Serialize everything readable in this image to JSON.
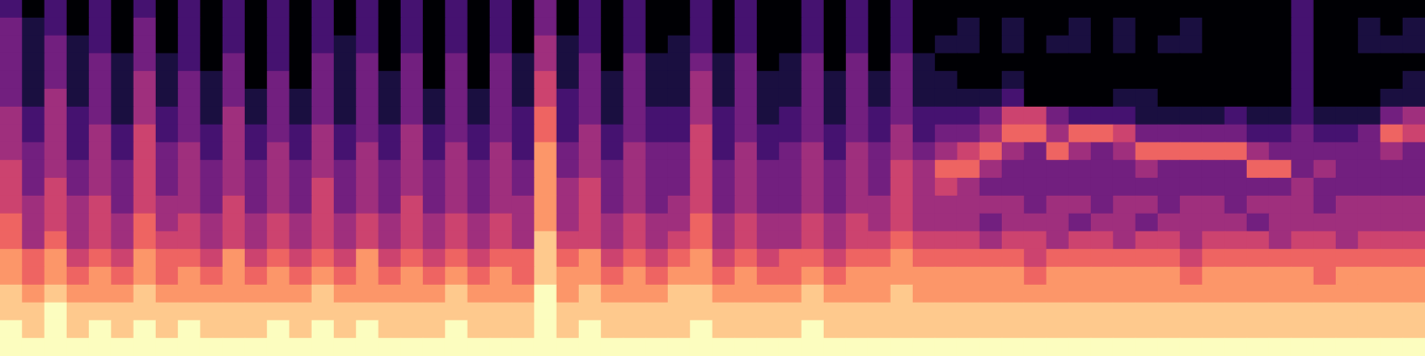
{
  "chart_data": {
    "type": "heatmap",
    "tick_labels": false,
    "color_range": [
      0,
      9
    ],
    "cells": [
      [
        2,
        0,
        2,
        0,
        2,
        0,
        2,
        0,
        2,
        0,
        2,
        0,
        2,
        0,
        2,
        0,
        2,
        0,
        2,
        0,
        2,
        0,
        2,
        0,
        3,
        0,
        2,
        0,
        2,
        0,
        0,
        2,
        0,
        2,
        0,
        0,
        2,
        0,
        2,
        0,
        2,
        0,
        0,
        0,
        0,
        0,
        0,
        0,
        0,
        0,
        0,
        0,
        0,
        0,
        0,
        0,
        0,
        0,
        2,
        0,
        0,
        0,
        0,
        0
      ],
      [
        3,
        1,
        2,
        0,
        2,
        0,
        3,
        0,
        2,
        0,
        2,
        0,
        2,
        0,
        2,
        0,
        2,
        0,
        2,
        0,
        2,
        0,
        2,
        0,
        3,
        0,
        2,
        0,
        2,
        0,
        0,
        2,
        0,
        2,
        0,
        0,
        2,
        0,
        2,
        0,
        2,
        0,
        0,
        1,
        0,
        1,
        0,
        0,
        1,
        0,
        1,
        0,
        0,
        1,
        0,
        0,
        0,
        0,
        2,
        0,
        0,
        1,
        0,
        1
      ],
      [
        3,
        1,
        3,
        1,
        2,
        0,
        3,
        0,
        2,
        0,
        2,
        0,
        2,
        0,
        2,
        1,
        2,
        0,
        2,
        0,
        2,
        0,
        2,
        0,
        4,
        1,
        2,
        0,
        2,
        0,
        1,
        2,
        0,
        2,
        0,
        0,
        2,
        0,
        2,
        0,
        2,
        0,
        1,
        1,
        0,
        1,
        0,
        1,
        1,
        0,
        1,
        0,
        1,
        1,
        0,
        0,
        0,
        0,
        2,
        0,
        0,
        1,
        1,
        1
      ],
      [
        3,
        1,
        3,
        1,
        3,
        1,
        3,
        1,
        2,
        0,
        3,
        0,
        2,
        0,
        3,
        1,
        3,
        0,
        3,
        0,
        3,
        0,
        3,
        1,
        4,
        1,
        3,
        0,
        3,
        1,
        1,
        3,
        1,
        3,
        0,
        1,
        3,
        0,
        3,
        0,
        3,
        1,
        0,
        0,
        0,
        0,
        0,
        0,
        0,
        0,
        0,
        0,
        0,
        0,
        0,
        0,
        0,
        0,
        2,
        0,
        0,
        0,
        0,
        0
      ],
      [
        3,
        1,
        3,
        1,
        3,
        1,
        4,
        1,
        3,
        1,
        3,
        0,
        3,
        0,
        3,
        1,
        3,
        1,
        3,
        0,
        3,
        0,
        3,
        1,
        5,
        1,
        3,
        1,
        3,
        1,
        1,
        4,
        1,
        3,
        1,
        1,
        3,
        1,
        3,
        1,
        3,
        1,
        1,
        0,
        0,
        1,
        0,
        0,
        0,
        0,
        0,
        0,
        0,
        0,
        0,
        0,
        0,
        0,
        2,
        0,
        0,
        0,
        0,
        1
      ],
      [
        3,
        1,
        4,
        1,
        3,
        1,
        4,
        1,
        3,
        1,
        3,
        1,
        3,
        1,
        3,
        1,
        3,
        1,
        3,
        1,
        3,
        1,
        3,
        1,
        5,
        2,
        3,
        1,
        3,
        1,
        1,
        4,
        1,
        3,
        1,
        1,
        3,
        1,
        3,
        1,
        3,
        1,
        1,
        1,
        1,
        2,
        0,
        0,
        0,
        0,
        1,
        1,
        0,
        0,
        0,
        0,
        0,
        0,
        2,
        0,
        0,
        0,
        1,
        1
      ],
      [
        4,
        2,
        4,
        2,
        3,
        1,
        4,
        2,
        3,
        1,
        4,
        1,
        3,
        1,
        3,
        1,
        3,
        1,
        3,
        1,
        3,
        1,
        3,
        2,
        6,
        2,
        3,
        1,
        3,
        2,
        2,
        4,
        2,
        3,
        1,
        2,
        3,
        1,
        3,
        2,
        3,
        2,
        2,
        2,
        3,
        5,
        5,
        3,
        2,
        2,
        2,
        1,
        1,
        1,
        1,
        2,
        1,
        1,
        2,
        1,
        1,
        1,
        3,
        4
      ],
      [
        4,
        2,
        4,
        2,
        4,
        2,
        5,
        2,
        3,
        2,
        4,
        2,
        3,
        2,
        4,
        2,
        3,
        2,
        4,
        2,
        3,
        2,
        3,
        2,
        6,
        2,
        4,
        2,
        3,
        2,
        2,
        5,
        2,
        3,
        2,
        2,
        3,
        2,
        3,
        2,
        4,
        2,
        3,
        3,
        4,
        6,
        6,
        4,
        6,
        6,
        5,
        3,
        3,
        3,
        3,
        3,
        2,
        2,
        3,
        2,
        2,
        3,
        6,
        5
      ],
      [
        4,
        3,
        4,
        2,
        4,
        2,
        5,
        3,
        4,
        2,
        4,
        2,
        4,
        2,
        4,
        2,
        4,
        2,
        4,
        2,
        4,
        2,
        4,
        2,
        7,
        3,
        4,
        2,
        4,
        3,
        3,
        5,
        2,
        4,
        2,
        3,
        4,
        2,
        4,
        3,
        4,
        3,
        4,
        5,
        6,
        4,
        3,
        6,
        4,
        3,
        4,
        6,
        6,
        6,
        6,
        6,
        4,
        3,
        3,
        3,
        3,
        3,
        4,
        3
      ],
      [
        5,
        3,
        4,
        3,
        4,
        3,
        5,
        3,
        4,
        3,
        4,
        3,
        4,
        3,
        4,
        3,
        4,
        3,
        4,
        3,
        4,
        3,
        4,
        3,
        7,
        3,
        4,
        3,
        4,
        3,
        3,
        5,
        3,
        4,
        3,
        3,
        4,
        3,
        4,
        3,
        5,
        4,
        6,
        6,
        4,
        3,
        3,
        3,
        3,
        3,
        3,
        4,
        3,
        3,
        3,
        3,
        6,
        6,
        3,
        4,
        3,
        3,
        3,
        3
      ],
      [
        5,
        3,
        5,
        3,
        4,
        3,
        5,
        3,
        4,
        3,
        4,
        3,
        4,
        3,
        5,
        3,
        4,
        3,
        4,
        3,
        4,
        3,
        4,
        3,
        7,
        4,
        5,
        3,
        4,
        3,
        3,
        5,
        3,
        4,
        3,
        3,
        4,
        3,
        4,
        3,
        5,
        4,
        5,
        4,
        3,
        3,
        3,
        3,
        3,
        3,
        3,
        3,
        3,
        3,
        3,
        3,
        3,
        3,
        4,
        3,
        3,
        3,
        3,
        3
      ],
      [
        5,
        4,
        5,
        4,
        5,
        3,
        5,
        4,
        4,
        3,
        5,
        3,
        4,
        3,
        5,
        3,
        4,
        3,
        5,
        3,
        4,
        3,
        4,
        4,
        7,
        4,
        5,
        3,
        4,
        3,
        4,
        5,
        3,
        4,
        3,
        3,
        4,
        3,
        4,
        4,
        5,
        4,
        4,
        4,
        4,
        4,
        3,
        4,
        4,
        3,
        4,
        4,
        3,
        4,
        4,
        3,
        4,
        4,
        4,
        3,
        4,
        4,
        4,
        4
      ],
      [
        6,
        4,
        5,
        4,
        5,
        4,
        6,
        4,
        5,
        4,
        5,
        4,
        5,
        4,
        5,
        4,
        5,
        4,
        5,
        4,
        5,
        4,
        5,
        4,
        7,
        4,
        5,
        4,
        5,
        4,
        4,
        6,
        4,
        5,
        4,
        4,
        5,
        4,
        5,
        4,
        5,
        4,
        4,
        4,
        3,
        4,
        4,
        4,
        3,
        4,
        4,
        3,
        4,
        4,
        4,
        4,
        3,
        4,
        4,
        4,
        4,
        4,
        4,
        4
      ],
      [
        6,
        4,
        6,
        4,
        5,
        4,
        6,
        5,
        5,
        4,
        5,
        4,
        5,
        4,
        5,
        4,
        5,
        4,
        5,
        4,
        5,
        4,
        5,
        4,
        8,
        5,
        5,
        4,
        5,
        4,
        5,
        6,
        4,
        5,
        4,
        4,
        5,
        4,
        5,
        5,
        6,
        5,
        5,
        5,
        4,
        5,
        5,
        4,
        5,
        5,
        4,
        5,
        5,
        4,
        5,
        5,
        5,
        4,
        5,
        5,
        4,
        5,
        5,
        5
      ],
      [
        7,
        6,
        7,
        5,
        6,
        5,
        7,
        6,
        6,
        5,
        7,
        5,
        6,
        5,
        6,
        5,
        7,
        5,
        6,
        5,
        6,
        5,
        6,
        6,
        8,
        6,
        7,
        5,
        6,
        5,
        6,
        7,
        5,
        6,
        5,
        6,
        6,
        5,
        6,
        6,
        7,
        6,
        6,
        6,
        6,
        6,
        5,
        6,
        6,
        6,
        6,
        6,
        6,
        5,
        6,
        6,
        6,
        6,
        6,
        6,
        6,
        6,
        6,
        6
      ],
      [
        7,
        6,
        7,
        6,
        7,
        6,
        7,
        6,
        7,
        6,
        7,
        6,
        7,
        6,
        7,
        6,
        7,
        6,
        7,
        6,
        7,
        6,
        7,
        6,
        8,
        7,
        7,
        6,
        7,
        6,
        7,
        7,
        6,
        7,
        6,
        6,
        7,
        6,
        7,
        7,
        7,
        7,
        7,
        7,
        7,
        7,
        6,
        7,
        7,
        7,
        7,
        7,
        7,
        6,
        7,
        7,
        7,
        7,
        7,
        6,
        7,
        7,
        7,
        7
      ],
      [
        8,
        7,
        8,
        7,
        7,
        7,
        8,
        7,
        7,
        7,
        7,
        7,
        7,
        7,
        8,
        7,
        7,
        7,
        7,
        7,
        8,
        7,
        7,
        7,
        9,
        7,
        8,
        7,
        7,
        7,
        8,
        8,
        7,
        7,
        7,
        7,
        8,
        7,
        7,
        7,
        8,
        7,
        7,
        7,
        7,
        7,
        7,
        7,
        7,
        7,
        7,
        7,
        7,
        7,
        7,
        7,
        7,
        7,
        7,
        7,
        7,
        7,
        7,
        7
      ],
      [
        8,
        8,
        9,
        8,
        8,
        8,
        8,
        8,
        8,
        8,
        8,
        8,
        8,
        8,
        8,
        8,
        8,
        8,
        8,
        8,
        8,
        8,
        8,
        8,
        9,
        8,
        8,
        8,
        8,
        8,
        8,
        8,
        8,
        8,
        8,
        8,
        8,
        8,
        8,
        8,
        8,
        8,
        8,
        8,
        8,
        8,
        8,
        8,
        8,
        8,
        8,
        8,
        8,
        8,
        8,
        8,
        8,
        8,
        8,
        8,
        8,
        8,
        8,
        8
      ],
      [
        9,
        8,
        9,
        8,
        9,
        8,
        9,
        8,
        9,
        8,
        8,
        8,
        9,
        8,
        9,
        8,
        9,
        8,
        8,
        8,
        9,
        8,
        8,
        8,
        9,
        8,
        9,
        8,
        8,
        8,
        8,
        9,
        8,
        8,
        8,
        8,
        9,
        8,
        8,
        8,
        8,
        8,
        8,
        8,
        8,
        8,
        8,
        8,
        8,
        8,
        8,
        8,
        8,
        8,
        8,
        8,
        8,
        8,
        8,
        8,
        8,
        8,
        8,
        8
      ],
      [
        9,
        9,
        9,
        9,
        9,
        9,
        9,
        9,
        9,
        9,
        9,
        9,
        9,
        9,
        9,
        9,
        9,
        9,
        9,
        9,
        9,
        9,
        9,
        9,
        9,
        9,
        9,
        9,
        9,
        9,
        9,
        9,
        9,
        9,
        9,
        9,
        9,
        9,
        9,
        9,
        9,
        9,
        9,
        9,
        9,
        9,
        9,
        9,
        9,
        9,
        9,
        9,
        9,
        9,
        9,
        9,
        9,
        9,
        9,
        9,
        9,
        9,
        9,
        9
      ]
    ]
  }
}
